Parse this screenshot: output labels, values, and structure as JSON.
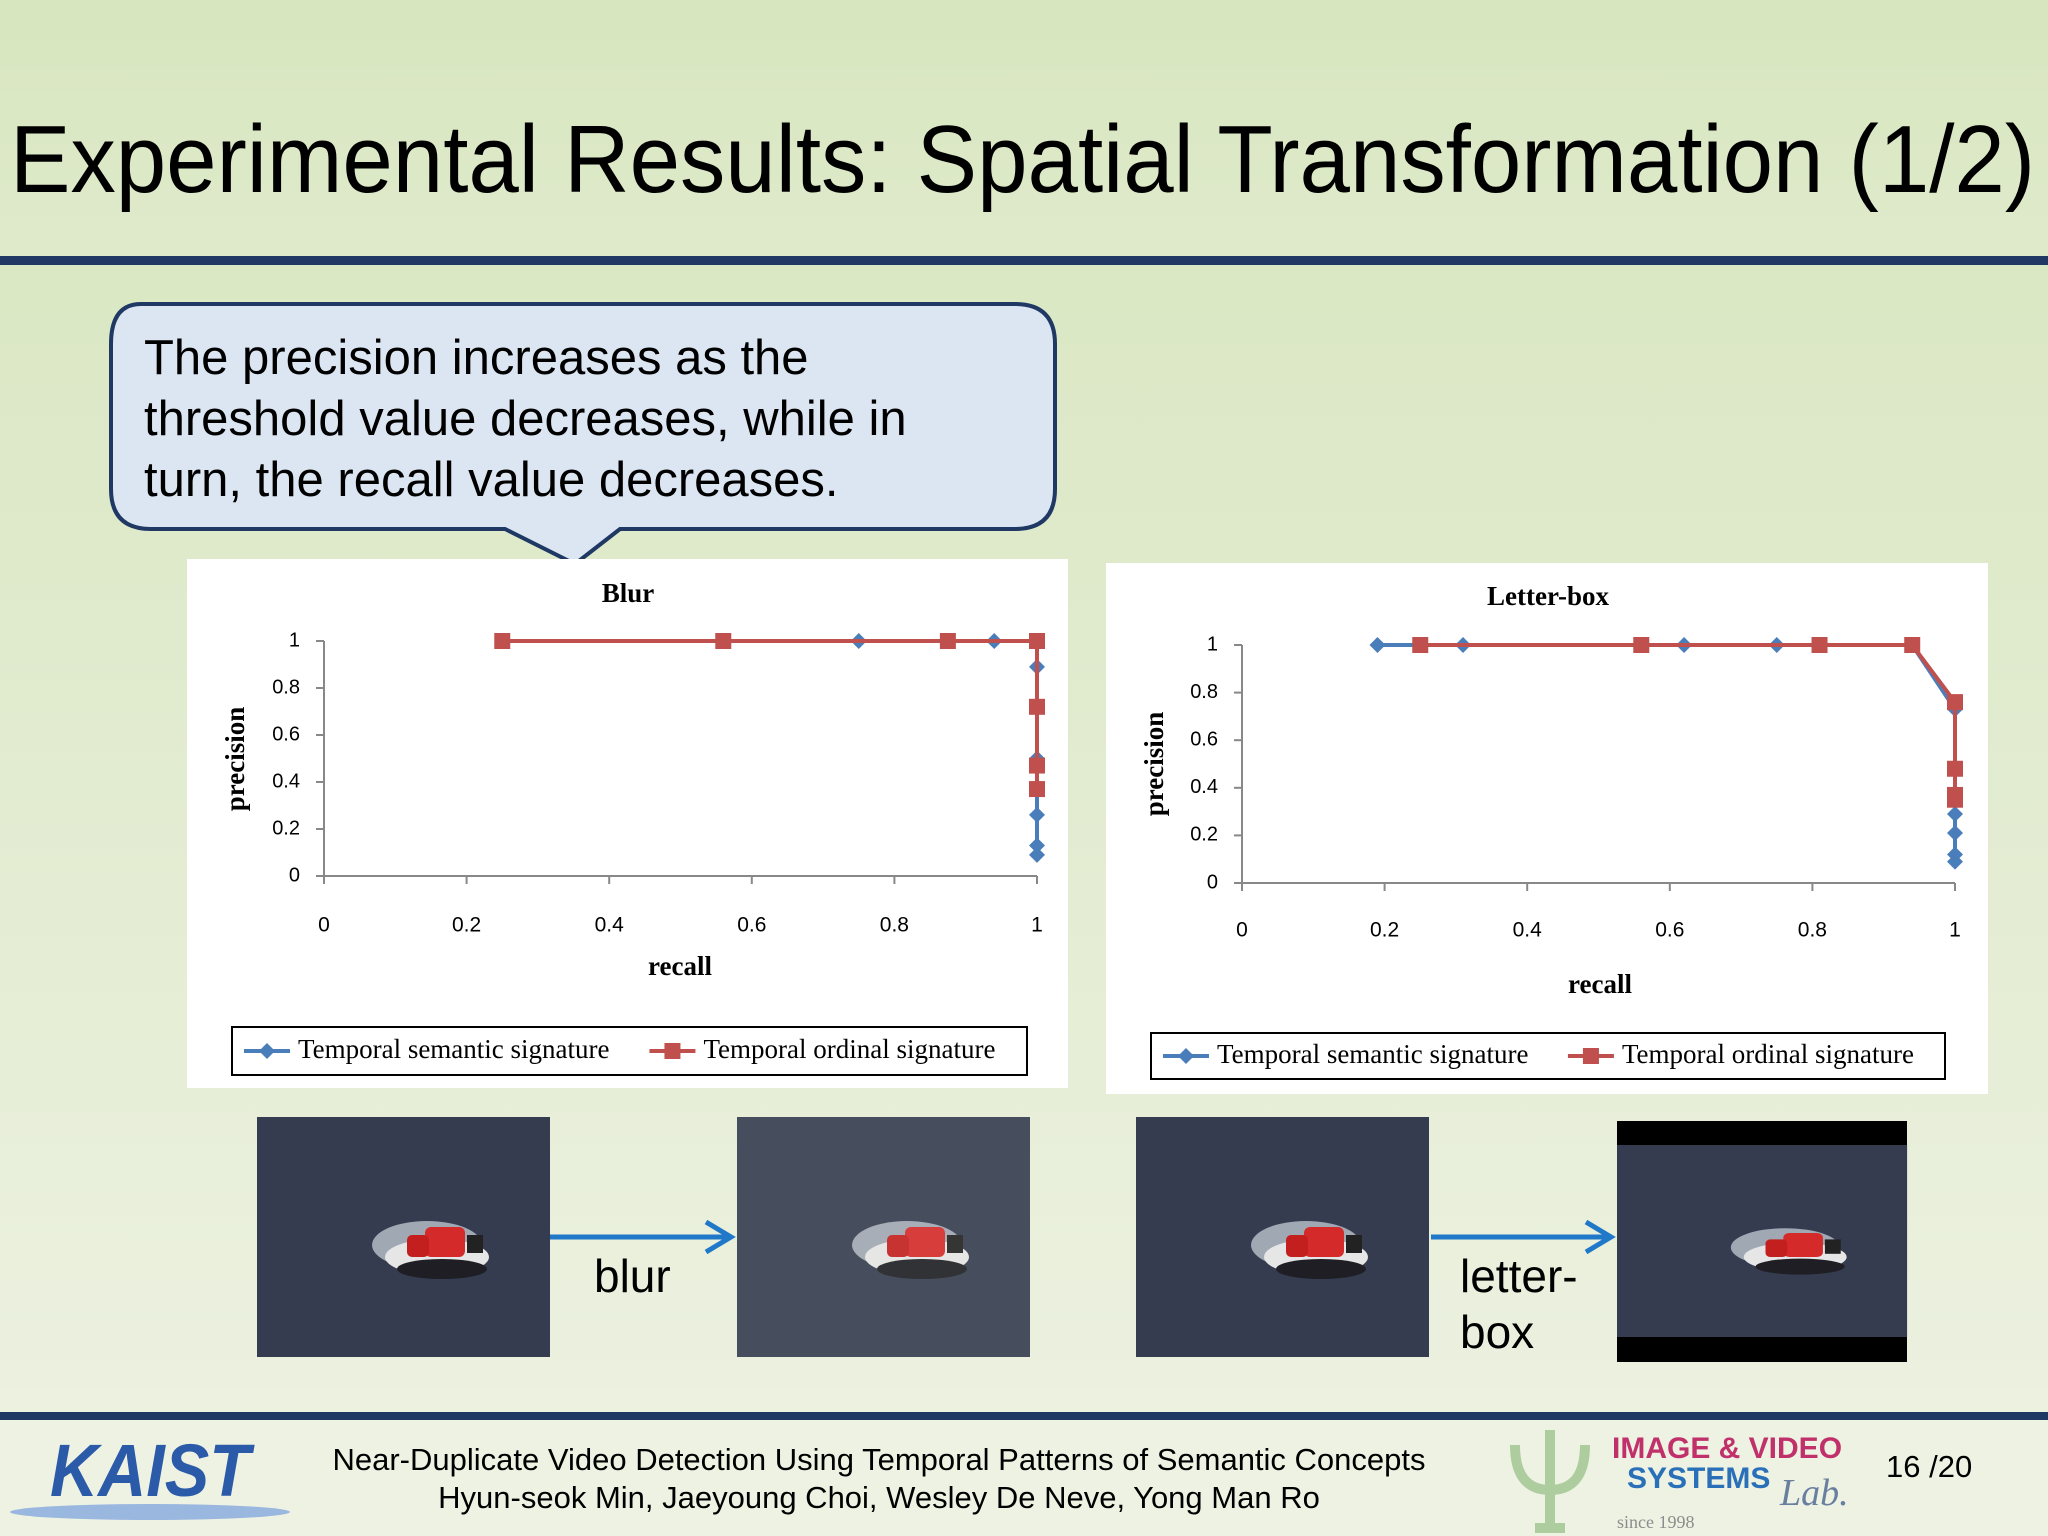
{
  "slide_title": "Experimental Results: Spatial Transformation (1/2)",
  "callout_lines": [
    "The precision increases as the",
    "threshold value decreases, while in",
    "turn, the recall value decreases."
  ],
  "chart_data": [
    {
      "type": "line",
      "title": "Blur",
      "x_label": "recall",
      "y_label": "precision",
      "xlim": [
        0,
        1
      ],
      "ylim": [
        0,
        1
      ],
      "xticks": [
        0,
        0.2,
        0.4,
        0.6,
        0.8,
        1
      ],
      "yticks": [
        0,
        0.2,
        0.4,
        0.6,
        0.8,
        1
      ],
      "series": [
        {
          "name": "Temporal semantic signature",
          "color": "#4a7ebb",
          "marker": "diamond",
          "x": [
            0.75,
            0.94,
            1,
            1,
            1,
            1,
            1,
            1,
            1
          ],
          "values": [
            1,
            1,
            1,
            0.89,
            0.72,
            0.5,
            0.26,
            0.13,
            0.09
          ]
        },
        {
          "name": "Temporal ordinal signature",
          "color": "#c0504d",
          "marker": "square",
          "x": [
            0.25,
            0.56,
            0.875,
            1,
            1,
            1,
            1
          ],
          "values": [
            1,
            1,
            1,
            1,
            0.72,
            0.47,
            0.37
          ]
        }
      ]
    },
    {
      "type": "line",
      "title": "Letter-box",
      "x_label": "recall",
      "y_label": "precision",
      "xlim": [
        0,
        1
      ],
      "ylim": [
        0,
        1
      ],
      "xticks": [
        0,
        0.2,
        0.4,
        0.6,
        0.8,
        1
      ],
      "yticks": [
        0,
        0.2,
        0.4,
        0.6,
        0.8,
        1
      ],
      "series": [
        {
          "name": "Temporal semantic signature",
          "color": "#4a7ebb",
          "marker": "diamond",
          "x": [
            0.19,
            0.31,
            0.62,
            0.75,
            0.94,
            1,
            1,
            1,
            1,
            1
          ],
          "values": [
            1,
            1,
            1,
            1,
            1,
            0.73,
            0.29,
            0.21,
            0.12,
            0.09
          ]
        },
        {
          "name": "Temporal ordinal signature",
          "color": "#c0504d",
          "marker": "square",
          "x": [
            0.25,
            0.56,
            0.81,
            0.94,
            1,
            1,
            1,
            1
          ],
          "values": [
            1,
            1,
            1,
            1,
            0.76,
            0.48,
            0.37,
            0.35
          ]
        }
      ]
    }
  ],
  "captions": {
    "left": "blur",
    "right_lines": [
      "letter-",
      "box"
    ]
  },
  "footer": {
    "logo": "KAIST",
    "paper_title": "Near-Duplicate Video Detection Using Temporal Patterns of Semantic Concepts",
    "authors": "Hyun-seok Min, Jaeyoung Choi, Wesley De Neve, Yong Man Ro",
    "lab_line1": "IMAGE & VIDEO",
    "lab_line2": "SYSTEMS",
    "lab_line3": "Lab.",
    "lab_since": "since 1998",
    "page": "16 /20"
  }
}
